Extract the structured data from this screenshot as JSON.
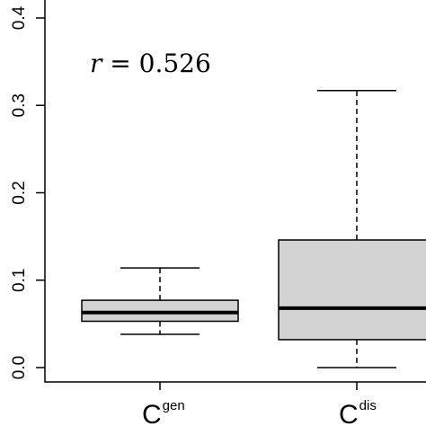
{
  "chart_data": {
    "type": "boxplot",
    "ylim": [
      0.0,
      0.4
    ],
    "yticks": [
      "0.0",
      "0.1",
      "0.2",
      "0.3",
      "0.4"
    ],
    "categories": [
      {
        "main": "C",
        "sup": "gen"
      },
      {
        "main": "C",
        "sup": "dis"
      }
    ],
    "boxes": [
      {
        "whisker_low": 0.038,
        "q1": 0.053,
        "median": 0.063,
        "q3": 0.077,
        "whisker_high": 0.114
      },
      {
        "whisker_low": 0.0,
        "q1": 0.032,
        "median": 0.068,
        "q3": 0.146,
        "whisker_high": 0.317
      }
    ],
    "annotation": {
      "variable": "r",
      "text": " = 0.526"
    },
    "box_fill": "#d3d3d3",
    "line_color": "#000000"
  }
}
